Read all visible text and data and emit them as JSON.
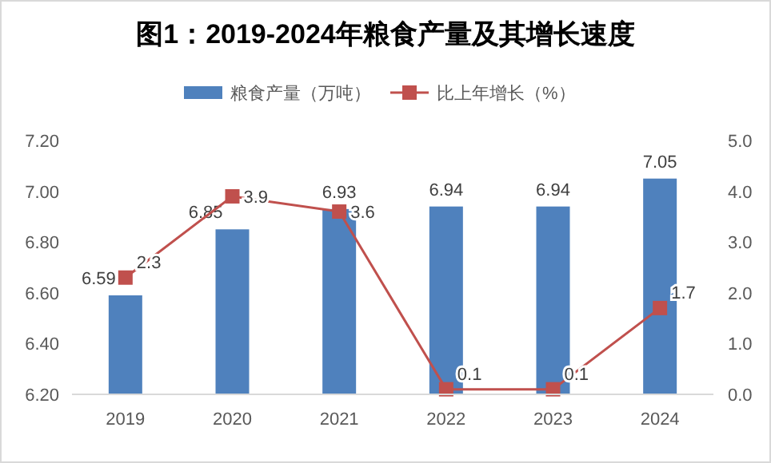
{
  "chart_data": {
    "type": "bar",
    "title": "图1：2019-2024年粮食产量及其增长速度",
    "categories": [
      "2019",
      "2020",
      "2021",
      "2022",
      "2023",
      "2024"
    ],
    "series": [
      {
        "name": "粮食产量（万吨）",
        "type": "bar",
        "color": "#4f81bd",
        "values": [
          6.59,
          6.85,
          6.93,
          6.94,
          6.94,
          7.05
        ]
      },
      {
        "name": "比上年增长（%）",
        "type": "line",
        "axis": "y2",
        "color": "#c0504d",
        "marker": "square",
        "values": [
          2.3,
          3.9,
          3.6,
          0.1,
          0.1,
          1.7
        ]
      }
    ],
    "ylim": [
      6.2,
      7.2
    ],
    "yticks": [
      {
        "value": 6.2,
        "label": "6.20"
      },
      {
        "value": 6.4,
        "label": "6.40"
      },
      {
        "value": 6.6,
        "label": "6.60"
      },
      {
        "value": 6.8,
        "label": "6.80"
      },
      {
        "value": 7.0,
        "label": "7.00"
      },
      {
        "value": 7.2,
        "label": "7.20"
      }
    ],
    "y2lim": [
      0,
      5
    ],
    "y2ticks": [
      {
        "value": 0,
        "label": "0.0"
      },
      {
        "value": 1,
        "label": "1.0"
      },
      {
        "value": 2,
        "label": "2.0"
      },
      {
        "value": 3,
        "label": "3.0"
      },
      {
        "value": 4,
        "label": "4.0"
      },
      {
        "value": 5,
        "label": "5.0"
      }
    ],
    "data_labels": true,
    "grid": false,
    "legend": "top"
  }
}
